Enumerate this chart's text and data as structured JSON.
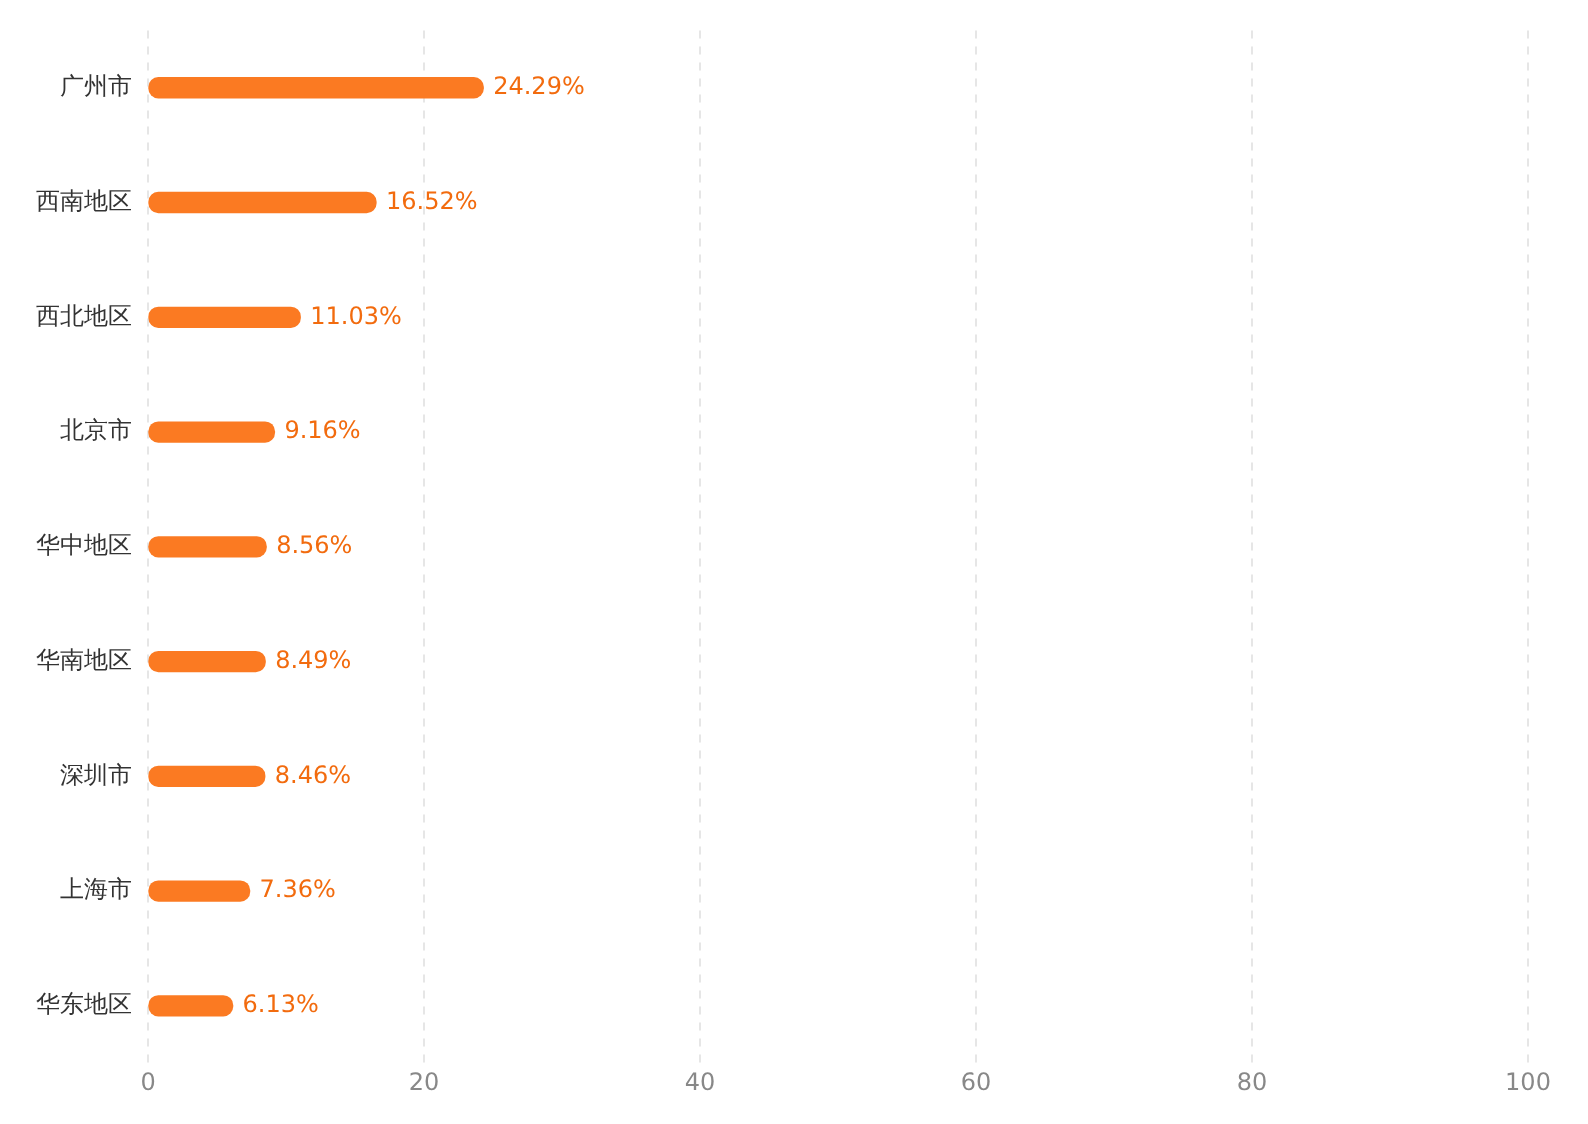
{
  "chart_data": {
    "type": "bar",
    "orientation": "horizontal",
    "categories": [
      "广州市",
      "西南地区",
      "西北地区",
      "北京市",
      "华中地区",
      "华南地区",
      "深圳市",
      "上海市",
      "华东地区"
    ],
    "values": [
      24.29,
      16.52,
      11.03,
      9.16,
      8.56,
      8.49,
      8.46,
      7.36,
      6.13
    ],
    "value_labels": [
      "24.29%",
      "16.52%",
      "11.03%",
      "9.16%",
      "8.56%",
      "8.49%",
      "8.46%",
      "7.36%",
      "6.13%"
    ],
    "color": "#fb7a22",
    "xlim": [
      0,
      100
    ],
    "xticks": [
      0,
      20,
      40,
      60,
      80,
      100
    ],
    "grid": "x",
    "legend": false
  }
}
